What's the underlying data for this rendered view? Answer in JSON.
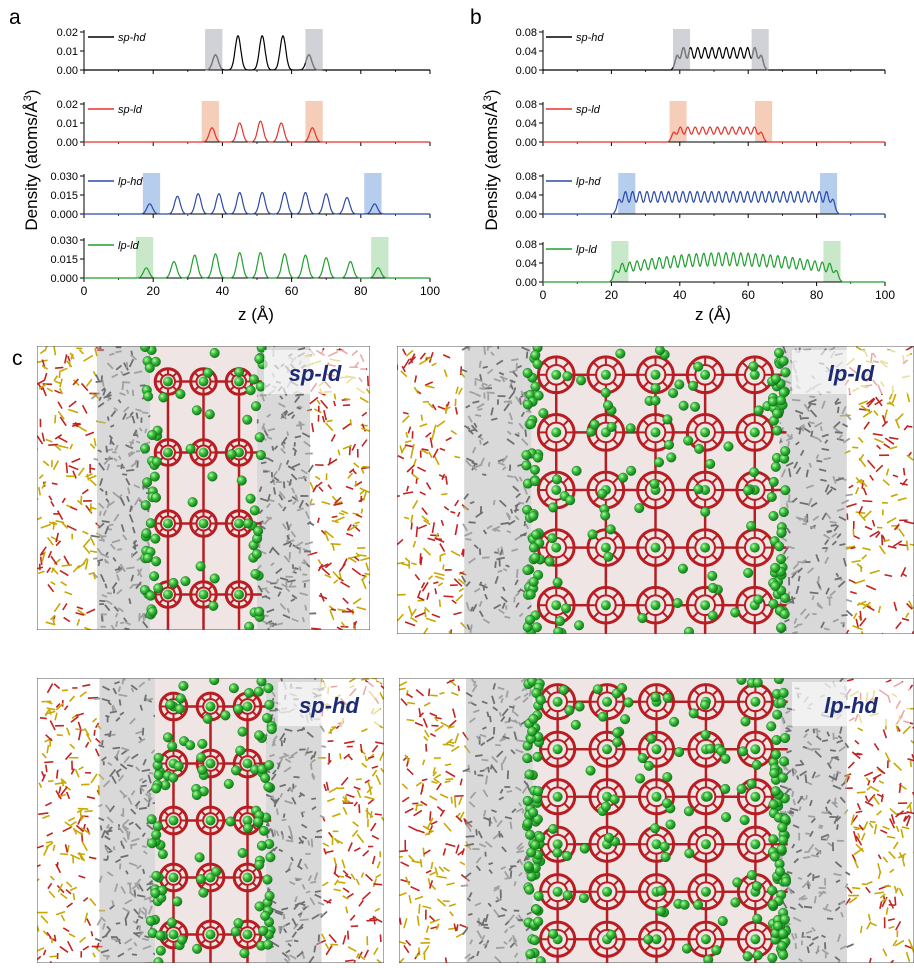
{
  "panel_letters": {
    "a": "a",
    "b": "b",
    "c": "c"
  },
  "shared_labels": {
    "ylabel": "Density (atoms/Å",
    "ylabel_sup": "3",
    "ylabel_close": ")",
    "xlabel": "z (Å)"
  },
  "x_ticks": [
    "0",
    "20",
    "40",
    "60",
    "80",
    "100"
  ],
  "colors": {
    "sp-hd": "#000000",
    "sp-ld": "#e8302a",
    "lp-hd": "#2a4aa8",
    "lp-ld": "#1fa02f",
    "sp-hd-shade": "#c8cad0",
    "sp-ld-shade": "#f4c4ad",
    "lp-hd-shade": "#a9c4ea",
    "lp-ld-shade": "#bfe3bf",
    "framework": "#b81d22",
    "cation": "#3cc13c",
    "organic": "#8c8c8c",
    "mineral_a": "#c8a800",
    "mineral_b": "#c22222"
  },
  "chart_data": [
    {
      "type": "line",
      "panel": "a",
      "xlim": [
        0,
        100
      ],
      "subplots": [
        {
          "name": "sp-hd",
          "yticks": [
            "0.00",
            "0.01",
            "0.02"
          ],
          "ylim": [
            0,
            0.02
          ],
          "shaded_x": [
            [
              35,
              40
            ],
            [
              64,
              69
            ]
          ],
          "peaks": [
            [
              38,
              0.008
            ],
            [
              44.5,
              0.018
            ],
            [
              51.5,
              0.018
            ],
            [
              57.5,
              0.018
            ],
            [
              65,
              0.008
            ]
          ]
        },
        {
          "name": "sp-ld",
          "yticks": [
            "0.00",
            "0.01",
            "0.02"
          ],
          "ylim": [
            0,
            0.02
          ],
          "shaded_x": [
            [
              34,
              39
            ],
            [
              64,
              69
            ]
          ],
          "peaks": [
            [
              37,
              0.0075
            ],
            [
              45,
              0.01
            ],
            [
              51,
              0.011
            ],
            [
              57,
              0.01
            ],
            [
              66,
              0.0075
            ]
          ]
        },
        {
          "name": "lp-hd",
          "yticks": [
            "0.000",
            "0.015",
            "0.030"
          ],
          "ylim": [
            0,
            0.03
          ],
          "shaded_x": [
            [
              17,
              22
            ],
            [
              81,
              86
            ]
          ],
          "peaks": [
            [
              19,
              0.008
            ],
            [
              27,
              0.014
            ],
            [
              33,
              0.016
            ],
            [
              39,
              0.016
            ],
            [
              45,
              0.017
            ],
            [
              51.5,
              0.017
            ],
            [
              58,
              0.017
            ],
            [
              64,
              0.017
            ],
            [
              70,
              0.016
            ],
            [
              76,
              0.013
            ],
            [
              84,
              0.008
            ]
          ]
        },
        {
          "name": "lp-ld",
          "yticks": [
            "0.000",
            "0.015",
            "0.030"
          ],
          "ylim": [
            0,
            0.03
          ],
          "shaded_x": [
            [
              15,
              20
            ],
            [
              83,
              88
            ]
          ],
          "peaks": [
            [
              18,
              0.008
            ],
            [
              26,
              0.013
            ],
            [
              32,
              0.018
            ],
            [
              38,
              0.019
            ],
            [
              45,
              0.02
            ],
            [
              51,
              0.02
            ],
            [
              58,
              0.019
            ],
            [
              64,
              0.018
            ],
            [
              70,
              0.016
            ],
            [
              77,
              0.013
            ],
            [
              85,
              0.008
            ]
          ]
        }
      ]
    },
    {
      "type": "line",
      "panel": "b",
      "xlim": [
        0,
        100
      ],
      "subplots": [
        {
          "name": "sp-hd",
          "yticks": [
            "0.00",
            "0.04",
            "0.08"
          ],
          "ylim": [
            0,
            0.08
          ],
          "shaded_x": [
            [
              38,
              43
            ],
            [
              61,
              66
            ]
          ],
          "range": [
            39,
            64
          ],
          "amp": 0.045,
          "dome": 0,
          "n": 12
        },
        {
          "name": "sp-ld",
          "yticks": [
            "0.00",
            "0.04",
            "0.08"
          ],
          "ylim": [
            0,
            0.08
          ],
          "shaded_x": [
            [
              37,
              42
            ],
            [
              62,
              67
            ]
          ],
          "range": [
            38,
            64
          ],
          "amp": 0.03,
          "dome": 0,
          "n": 12
        },
        {
          "name": "lp-hd",
          "yticks": [
            "0.00",
            "0.04",
            "0.08"
          ],
          "ylim": [
            0,
            0.08
          ],
          "shaded_x": [
            [
              22,
              27
            ],
            [
              81,
              86
            ]
          ],
          "range": [
            22,
            85
          ],
          "amp": 0.045,
          "dome": 0,
          "n": 30
        },
        {
          "name": "lp-ld",
          "yticks": [
            "0.00",
            "0.04",
            "0.08"
          ],
          "ylim": [
            0,
            0.08
          ],
          "shaded_x": [
            [
              20,
              25
            ],
            [
              82,
              87
            ]
          ],
          "range": [
            21,
            86
          ],
          "amp": 0.035,
          "dome": 0.025,
          "n": 30
        }
      ]
    }
  ],
  "snapshots": [
    {
      "label": "sp-ld",
      "wide": false,
      "pores": [
        3,
        4
      ],
      "cation_count": 80
    },
    {
      "label": "lp-ld",
      "wide": true,
      "pores": [
        5,
        5
      ],
      "cation_count": 180
    },
    {
      "label": "sp-hd",
      "wide": false,
      "pores": [
        3,
        5
      ],
      "cation_count": 110
    },
    {
      "label": "lp-hd",
      "wide": true,
      "pores": [
        5,
        6
      ],
      "cation_count": 220
    }
  ]
}
